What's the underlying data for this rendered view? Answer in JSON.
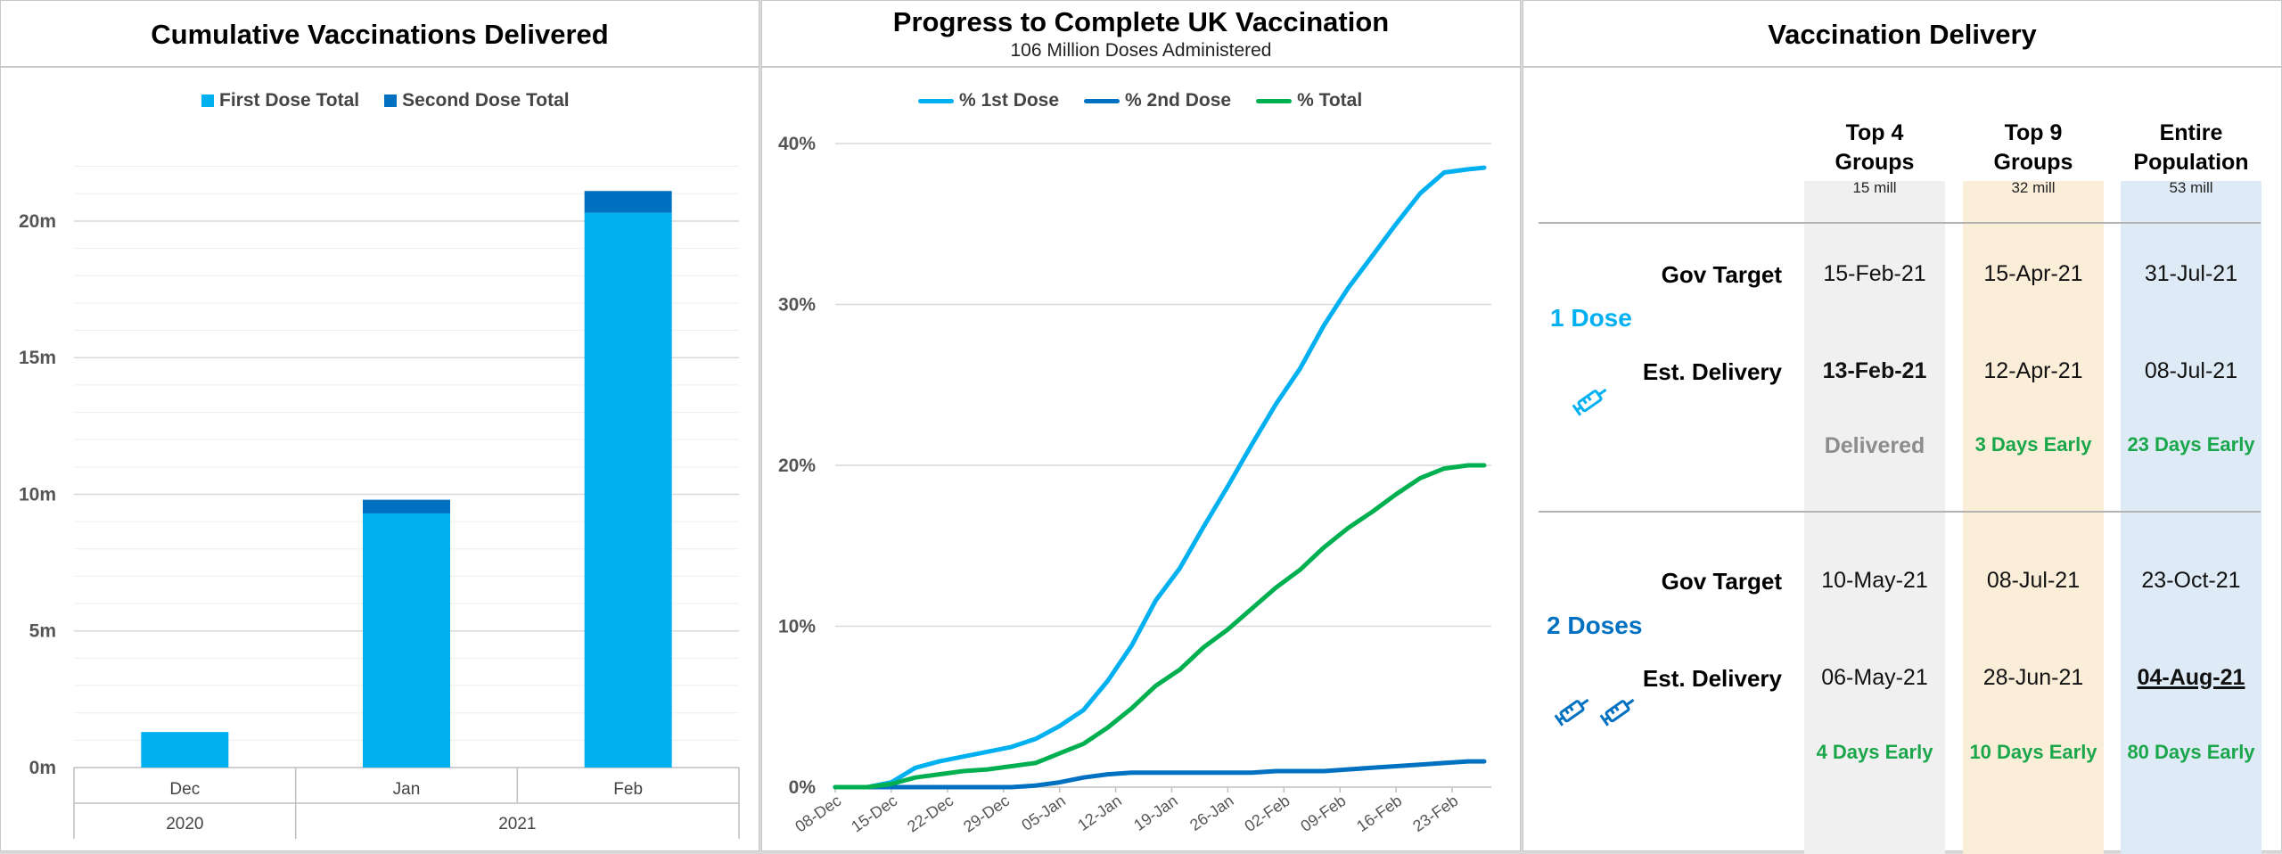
{
  "panels": {
    "left_title": "Cumulative Vaccinations Delivered",
    "mid_title": "Progress to Complete UK Vaccination",
    "mid_subtitle": "106 Million Doses Administered",
    "right_title": "Vaccination Delivery"
  },
  "colors": {
    "first": "#00b0f0",
    "second": "#0070c0",
    "total": "#00b050",
    "early": "#1aa64a"
  },
  "chart_data": [
    {
      "type": "bar",
      "stacked": true,
      "title": "Cumulative Vaccinations Delivered",
      "categories": [
        "Dec",
        "Jan",
        "Feb"
      ],
      "category_groups": [
        {
          "label": "2020",
          "span": 1
        },
        {
          "label": "2021",
          "span": 2
        }
      ],
      "series": [
        {
          "name": "First Dose Total",
          "values": [
            1.3,
            9.3,
            20.3
          ]
        },
        {
          "name": "Second Dose Total",
          "values": [
            0.0,
            0.5,
            0.8
          ]
        }
      ],
      "yticks": [
        "0m",
        "5m",
        "10m",
        "15m",
        "20m"
      ],
      "ylim": [
        0,
        23
      ],
      "grid": true,
      "legend": "top-center"
    },
    {
      "type": "line",
      "title": "Progress to Complete UK Vaccination",
      "subtitle": "106 Million Doses Administered",
      "xticks": [
        "08-Dec",
        "15-Dec",
        "22-Dec",
        "29-Dec",
        "05-Jan",
        "12-Jan",
        "19-Jan",
        "26-Jan",
        "02-Feb",
        "09-Feb",
        "16-Feb",
        "23-Feb"
      ],
      "x_days": [
        0,
        7,
        14,
        21,
        28,
        35,
        42,
        49,
        56,
        63,
        70,
        77
      ],
      "yticks": [
        "0%",
        "10%",
        "20%",
        "30%",
        "40%"
      ],
      "ylim": [
        0,
        40
      ],
      "x_dates": [
        "08-Dec",
        "12-Dec",
        "15-Dec",
        "18-Dec",
        "21-Dec",
        "24-Dec",
        "27-Dec",
        "30-Dec",
        "02-Jan",
        "05-Jan",
        "08-Jan",
        "11-Jan",
        "14-Jan",
        "17-Jan",
        "20-Jan",
        "23-Jan",
        "26-Jan",
        "29-Jan",
        "01-Feb",
        "04-Feb",
        "07-Feb",
        "10-Feb",
        "13-Feb",
        "16-Feb",
        "19-Feb",
        "22-Feb",
        "25-Feb",
        "27-Feb"
      ],
      "series": [
        {
          "name": "% 1st Dose",
          "values": [
            0,
            0,
            0.3,
            1.2,
            1.6,
            1.9,
            2.2,
            2.5,
            3.0,
            3.8,
            4.8,
            6.6,
            8.8,
            11.6,
            13.6,
            16.2,
            18.7,
            21.3,
            23.8,
            26.0,
            28.7,
            31.0,
            33.0,
            35.0,
            36.9,
            38.2,
            38.4,
            38.5
          ]
        },
        {
          "name": "% 2nd Dose",
          "values": [
            0,
            0,
            0,
            0,
            0,
            0,
            0,
            0,
            0.1,
            0.3,
            0.6,
            0.8,
            0.9,
            0.9,
            0.9,
            0.9,
            0.9,
            0.9,
            1.0,
            1.0,
            1.0,
            1.1,
            1.2,
            1.3,
            1.4,
            1.5,
            1.6,
            1.6
          ]
        },
        {
          "name": "% Total",
          "values": [
            0,
            0,
            0.2,
            0.6,
            0.8,
            1.0,
            1.1,
            1.3,
            1.5,
            2.1,
            2.7,
            3.7,
            4.9,
            6.3,
            7.3,
            8.7,
            9.8,
            11.1,
            12.4,
            13.5,
            14.9,
            16.1,
            17.1,
            18.2,
            19.2,
            19.8,
            20.0,
            20.0
          ]
        }
      ],
      "legend": "top-center",
      "grid": true
    }
  ],
  "table": {
    "columns": [
      {
        "label_lines": [
          "Top 4",
          "Groups"
        ],
        "sub": "15 mill",
        "bg": "#f0f0f0"
      },
      {
        "label_lines": [
          "Top 9",
          "Groups"
        ],
        "sub": "32 mill",
        "bg": "#fbeed9"
      },
      {
        "label_lines": [
          "Entire",
          "Population"
        ],
        "sub": "53 mill",
        "bg": "#deebf7"
      }
    ],
    "groups": [
      {
        "name": "1 Dose",
        "color": "#00b0f0",
        "row_labels": [
          "Gov Target",
          "Est. Delivery"
        ],
        "gov_target": [
          "15-Feb-21",
          "15-Apr-21",
          "31-Jul-21"
        ],
        "est_delivery": [
          "13-Feb-21",
          "12-Apr-21",
          "08-Jul-21"
        ],
        "status": [
          "Delivered",
          "3 Days Early",
          "23 Days Early"
        ]
      },
      {
        "name": "2 Doses",
        "color": "#0070c0",
        "row_labels": [
          "Gov Target",
          "Est. Delivery"
        ],
        "gov_target": [
          "10-May-21",
          "08-Jul-21",
          "23-Oct-21"
        ],
        "est_delivery": [
          "06-May-21",
          "28-Jun-21",
          "04-Aug-21"
        ],
        "status": [
          "4 Days Early",
          "10 Days Early",
          "80 Days Early"
        ]
      }
    ]
  }
}
